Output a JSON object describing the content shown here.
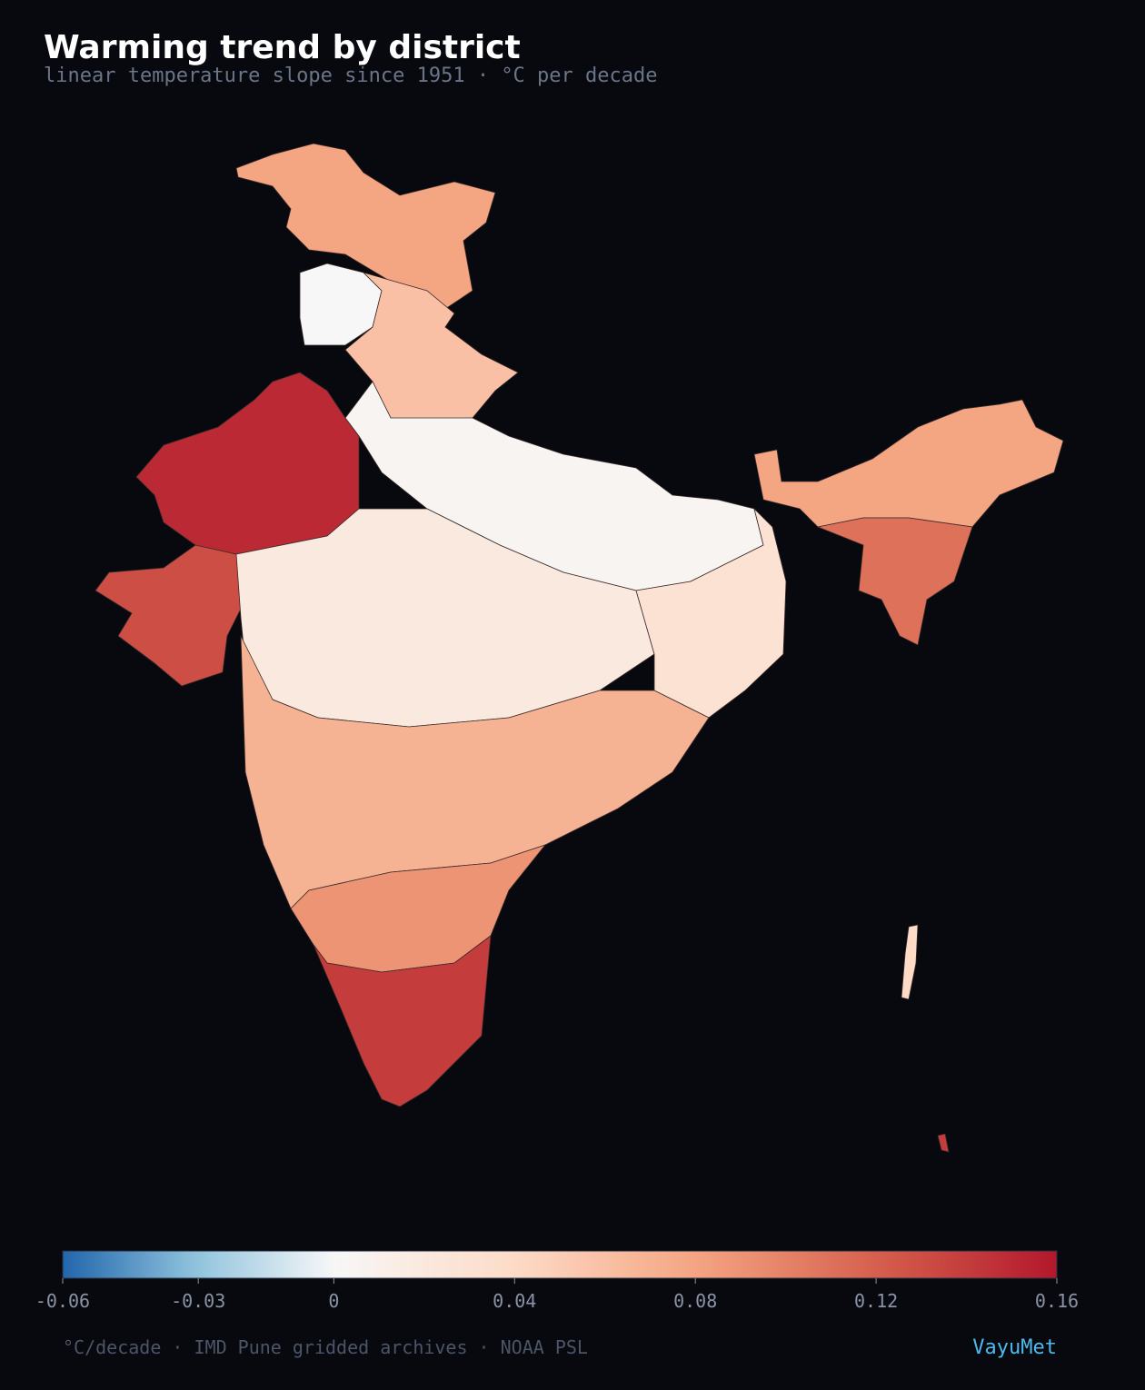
{
  "chart_data": {
    "type": "choropleth",
    "title": "Warming trend by district",
    "subtitle": "linear temperature slope since 1951 · °C per decade",
    "values": [
      0.08,
      0.0,
      0.06,
      0.15,
      0.13,
      0.005,
      0.02,
      0.03,
      0.07,
      0.09,
      0.14,
      0.08,
      0.11,
      0.04,
      0.14
    ],
    "colorbar": {
      "lim": [
        -0.06,
        0.16
      ],
      "ticks": [
        -0.06,
        -0.03,
        0,
        0.04,
        0.08,
        0.12,
        0.16
      ],
      "center": 0,
      "colors_below": [
        "#2166ac",
        "#92c5de",
        "#f7f7f7"
      ],
      "colors_above": [
        "#f7f7f7",
        "#fddbc7",
        "#f4a582",
        "#d6604d",
        "#b2182b"
      ]
    },
    "footer": "°C/decade · IMD Pune gridded archives · NOAA PSL",
    "brand": "VayuMet"
  }
}
